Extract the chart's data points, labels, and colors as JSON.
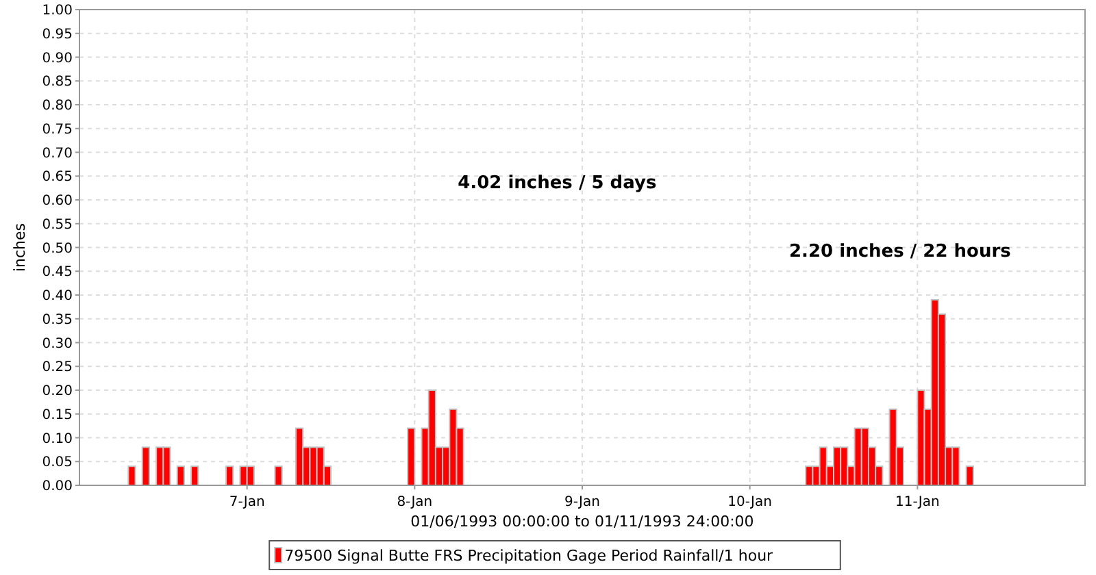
{
  "chart_data": {
    "type": "bar",
    "ylabel": "inches",
    "xlabel": "01/06/1993 00:00:00 to 01/11/1993 24:00:00",
    "annotations": [
      "4.02 inches / 5 days",
      "2.20 inches / 22 hours"
    ],
    "xlim": [
      "1993-01-06T00:00",
      "1993-01-12T00:00"
    ],
    "xticks": [
      {
        "value": "1993-01-07",
        "label": "7-Jan"
      },
      {
        "value": "1993-01-08",
        "label": "8-Jan"
      },
      {
        "value": "1993-01-09",
        "label": "9-Jan"
      },
      {
        "value": "1993-01-10",
        "label": "10-Jan"
      },
      {
        "value": "1993-01-11",
        "label": "11-Jan"
      }
    ],
    "ylim": [
      0,
      1
    ],
    "yticks": [
      {
        "value": 0,
        "label": "0.00"
      },
      {
        "value": 0.05,
        "label": "0.05"
      },
      {
        "value": 0.1,
        "label": "0.10"
      },
      {
        "value": 0.15,
        "label": "0.15"
      },
      {
        "value": 0.2,
        "label": "0.20"
      },
      {
        "value": 0.25,
        "label": "0.25"
      },
      {
        "value": 0.3,
        "label": "0.30"
      },
      {
        "value": 0.35,
        "label": "0.35"
      },
      {
        "value": 0.4,
        "label": "0.40"
      },
      {
        "value": 0.45,
        "label": "0.45"
      },
      {
        "value": 0.5,
        "label": "0.50"
      },
      {
        "value": 0.55,
        "label": "0.55"
      },
      {
        "value": 0.6,
        "label": "0.60"
      },
      {
        "value": 0.65,
        "label": "0.65"
      },
      {
        "value": 0.7,
        "label": "0.70"
      },
      {
        "value": 0.75,
        "label": "0.75"
      },
      {
        "value": 0.8,
        "label": "0.80"
      },
      {
        "value": 0.85,
        "label": "0.85"
      },
      {
        "value": 0.9,
        "label": "0.90"
      },
      {
        "value": 0.95,
        "label": "0.95"
      },
      {
        "value": 1,
        "label": "1.00"
      }
    ],
    "grid": true,
    "legend": "bottom",
    "x": [
      "1993-01-06T07:00",
      "1993-01-06T09:00",
      "1993-01-06T11:00",
      "1993-01-06T12:00",
      "1993-01-06T14:00",
      "1993-01-06T16:00",
      "1993-01-06T21:00",
      "1993-01-06T23:00",
      "1993-01-07T00:00",
      "1993-01-07T04:00",
      "1993-01-07T07:00",
      "1993-01-07T08:00",
      "1993-01-07T09:00",
      "1993-01-07T10:00",
      "1993-01-07T11:00",
      "1993-01-07T23:00",
      "1993-01-08T01:00",
      "1993-01-08T02:00",
      "1993-01-08T03:00",
      "1993-01-08T04:00",
      "1993-01-08T05:00",
      "1993-01-08T06:00",
      "1993-01-10T08:00",
      "1993-01-10T09:00",
      "1993-01-10T10:00",
      "1993-01-10T11:00",
      "1993-01-10T12:00",
      "1993-01-10T13:00",
      "1993-01-10T14:00",
      "1993-01-10T15:00",
      "1993-01-10T16:00",
      "1993-01-10T17:00",
      "1993-01-10T18:00",
      "1993-01-10T20:00",
      "1993-01-10T21:00",
      "1993-01-11T00:00",
      "1993-01-11T01:00",
      "1993-01-11T02:00",
      "1993-01-11T03:00",
      "1993-01-11T04:00",
      "1993-01-11T05:00",
      "1993-01-11T07:00"
    ],
    "series": [
      {
        "name": "79500 Signal Butte FRS Precipitation Gage Period Rainfall/1 hour",
        "color": "#ff0000",
        "values": [
          0.04,
          0.08,
          0.08,
          0.08,
          0.04,
          0.04,
          0.04,
          0.04,
          0.04,
          0.04,
          0.12,
          0.08,
          0.08,
          0.08,
          0.04,
          0.12,
          0.12,
          0.2,
          0.08,
          0.08,
          0.16,
          0.12,
          0.04,
          0.04,
          0.08,
          0.04,
          0.08,
          0.08,
          0.04,
          0.12,
          0.12,
          0.08,
          0.04,
          0.16,
          0.08,
          0.2,
          0.16,
          0.39,
          0.36,
          0.08,
          0.08,
          0.04
        ]
      }
    ]
  }
}
